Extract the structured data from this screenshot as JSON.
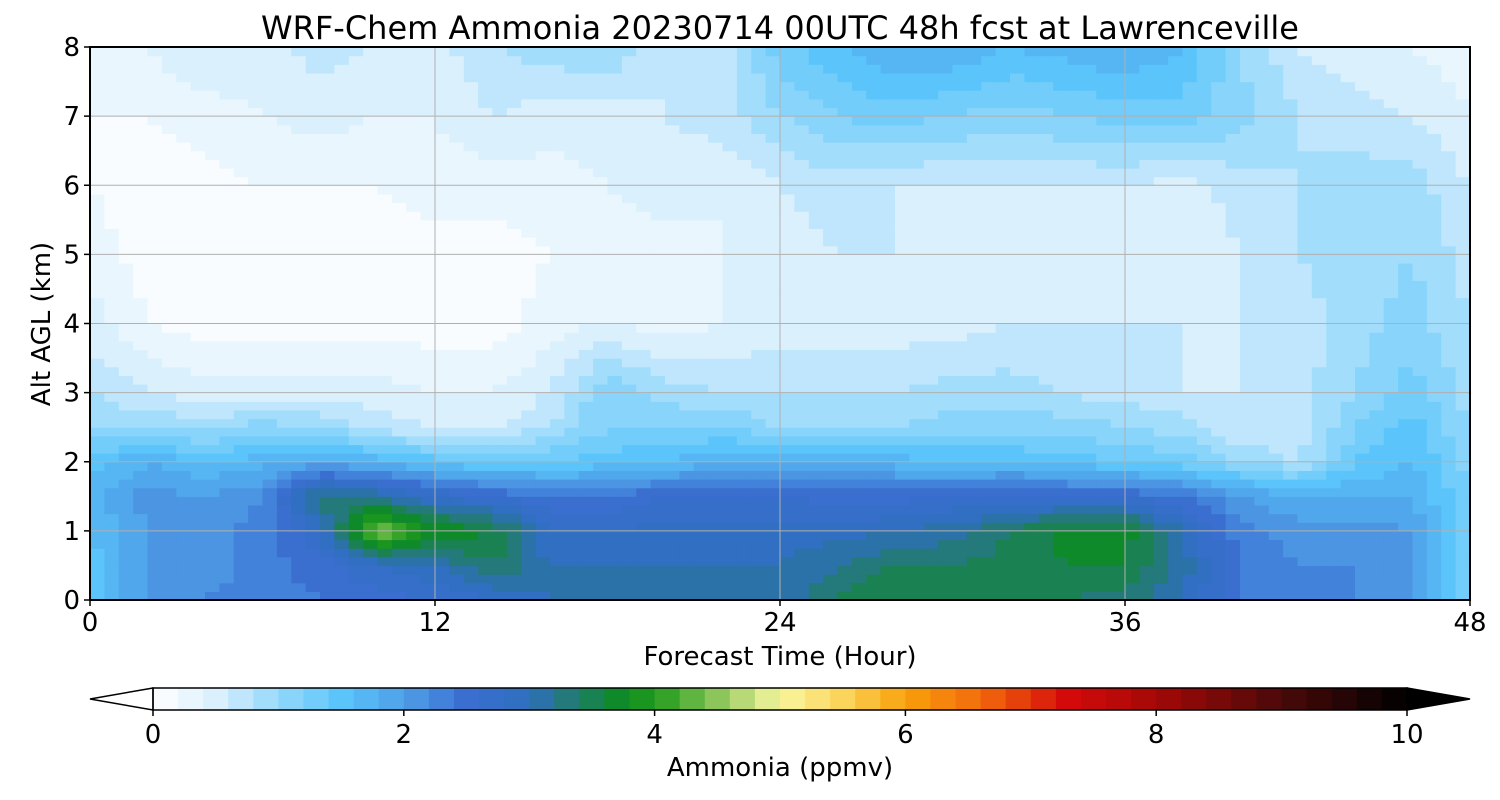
{
  "chart_data": {
    "type": "heatmap",
    "title": "WRF-Chem Ammonia  20230714 00UTC 48h fcst at Lawrenceville",
    "xlabel": "Forecast Time (Hour)",
    "ylabel": "Alt AGL (km)",
    "xlim": [
      0,
      48
    ],
    "ylim": [
      0,
      8
    ],
    "xticks": [
      0,
      12,
      24,
      36,
      48
    ],
    "yticks": [
      0,
      1,
      2,
      3,
      4,
      5,
      6,
      7,
      8
    ],
    "grid": true,
    "colorbar": {
      "label": "Ammonia  (ppmv)",
      "range": [
        0,
        10
      ],
      "ticks": [
        0,
        2,
        4,
        6,
        8,
        10
      ],
      "extend": "both",
      "stops": [
        {
          "v": 0.0,
          "color": "#ffffff"
        },
        {
          "v": 0.5,
          "color": "#dbf0fd"
        },
        {
          "v": 1.0,
          "color": "#94d8fb"
        },
        {
          "v": 1.5,
          "color": "#5bc5fb"
        },
        {
          "v": 2.0,
          "color": "#4f9fe8"
        },
        {
          "v": 2.5,
          "color": "#3a6fd0"
        },
        {
          "v": 3.0,
          "color": "#2f6fbf"
        },
        {
          "v": 3.3,
          "color": "#24797a"
        },
        {
          "v": 3.7,
          "color": "#0f8a2a"
        },
        {
          "v": 4.0,
          "color": "#1f9a1a"
        },
        {
          "v": 4.5,
          "color": "#8cc65a"
        },
        {
          "v": 5.0,
          "color": "#f9f7a0"
        },
        {
          "v": 5.5,
          "color": "#fbd45b"
        },
        {
          "v": 6.0,
          "color": "#f8a10b"
        },
        {
          "v": 6.6,
          "color": "#f26a0c"
        },
        {
          "v": 7.3,
          "color": "#d40a0a"
        },
        {
          "v": 8.0,
          "color": "#a40808"
        },
        {
          "v": 9.0,
          "color": "#4a0909"
        },
        {
          "v": 10.0,
          "color": "#000000"
        }
      ]
    },
    "field": {
      "description_free": true,
      "times": [
        0,
        2,
        4,
        6,
        8,
        10,
        12,
        14,
        16,
        18,
        20,
        22,
        24,
        26,
        28,
        30,
        32,
        34,
        36,
        38,
        40,
        42,
        44,
        46,
        48
      ],
      "altitudes": [
        0,
        0.5,
        1,
        1.5,
        2,
        2.5,
        3,
        4,
        5,
        6,
        7,
        8
      ],
      "values": [
        [
          1.5,
          2.0,
          2.2,
          2.3,
          2.4,
          2.5,
          2.6,
          2.8,
          3.0,
          3.0,
          3.0,
          3.0,
          3.0,
          3.4,
          3.6,
          3.6,
          3.5,
          3.4,
          3.3,
          3.0,
          2.4,
          2.2,
          2.2,
          2.0,
          1.2
        ],
        [
          1.5,
          2.0,
          2.1,
          2.3,
          2.5,
          2.8,
          3.0,
          3.4,
          3.0,
          3.0,
          3.0,
          3.0,
          3.0,
          3.2,
          3.4,
          3.4,
          3.5,
          3.6,
          3.6,
          3.1,
          2.4,
          2.2,
          2.2,
          2.1,
          1.2
        ],
        [
          1.6,
          2.0,
          2.1,
          2.3,
          2.8,
          4.5,
          3.8,
          3.6,
          2.8,
          2.8,
          2.9,
          2.9,
          2.9,
          2.9,
          3.0,
          3.1,
          3.4,
          3.7,
          3.7,
          3.0,
          2.3,
          2.1,
          2.1,
          2.0,
          1.2
        ],
        [
          1.7,
          2.1,
          2.0,
          2.2,
          3.4,
          3.2,
          2.8,
          2.6,
          2.4,
          2.4,
          2.6,
          2.6,
          2.6,
          2.5,
          2.5,
          2.6,
          2.7,
          2.6,
          2.6,
          2.4,
          2.0,
          1.8,
          1.8,
          1.8,
          1.2
        ],
        [
          1.5,
          1.8,
          1.6,
          1.7,
          1.9,
          1.7,
          1.5,
          1.4,
          1.4,
          1.5,
          1.6,
          1.8,
          1.8,
          1.8,
          1.7,
          1.6,
          1.6,
          1.5,
          1.4,
          1.3,
          1.0,
          0.8,
          1.4,
          1.6,
          1.1
        ],
        [
          1.0,
          1.0,
          0.9,
          1.1,
          1.0,
          0.7,
          0.6,
          0.6,
          0.8,
          1.2,
          1.2,
          1.2,
          1.0,
          1.0,
          1.0,
          1.1,
          1.1,
          1.1,
          1.0,
          0.9,
          0.6,
          0.6,
          1.2,
          1.5,
          1.0
        ],
        [
          0.8,
          0.6,
          0.5,
          0.5,
          0.5,
          0.5,
          0.4,
          0.4,
          0.6,
          1.2,
          0.9,
          0.8,
          0.8,
          0.8,
          0.8,
          0.9,
          0.9,
          0.8,
          0.7,
          0.6,
          0.6,
          0.7,
          1.0,
          1.3,
          0.9
        ],
        [
          0.5,
          0.2,
          0.1,
          0.1,
          0.1,
          0.1,
          0.1,
          0.1,
          0.3,
          0.4,
          0.3,
          0.4,
          0.5,
          0.5,
          0.5,
          0.5,
          0.6,
          0.6,
          0.6,
          0.6,
          0.6,
          0.7,
          0.9,
          1.1,
          0.8
        ],
        [
          0.3,
          0.1,
          0.1,
          0.1,
          0.1,
          0.1,
          0.1,
          0.1,
          0.2,
          0.3,
          0.3,
          0.4,
          0.5,
          0.6,
          0.6,
          0.5,
          0.5,
          0.6,
          0.5,
          0.4,
          0.6,
          0.8,
          0.9,
          1.0,
          0.7
        ],
        [
          0.2,
          0.1,
          0.1,
          0.2,
          0.2,
          0.2,
          0.3,
          0.3,
          0.3,
          0.4,
          0.5,
          0.4,
          0.6,
          0.7,
          0.6,
          0.6,
          0.6,
          0.6,
          0.6,
          0.5,
          0.7,
          0.8,
          0.9,
          0.9,
          0.6
        ],
        [
          0.2,
          0.2,
          0.3,
          0.4,
          0.5,
          0.4,
          0.4,
          0.6,
          0.5,
          0.5,
          0.6,
          0.7,
          1.0,
          1.2,
          1.3,
          1.2,
          1.1,
          1.2,
          1.3,
          1.3,
          1.1,
          0.8,
          0.7,
          0.6,
          0.4
        ],
        [
          0.2,
          0.4,
          0.6,
          0.5,
          0.7,
          0.6,
          0.5,
          0.8,
          0.9,
          1.0,
          0.6,
          0.7,
          1.3,
          1.6,
          1.8,
          1.8,
          1.6,
          1.7,
          1.8,
          1.6,
          1.0,
          0.6,
          0.5,
          0.4,
          0.3
        ]
      ]
    }
  }
}
